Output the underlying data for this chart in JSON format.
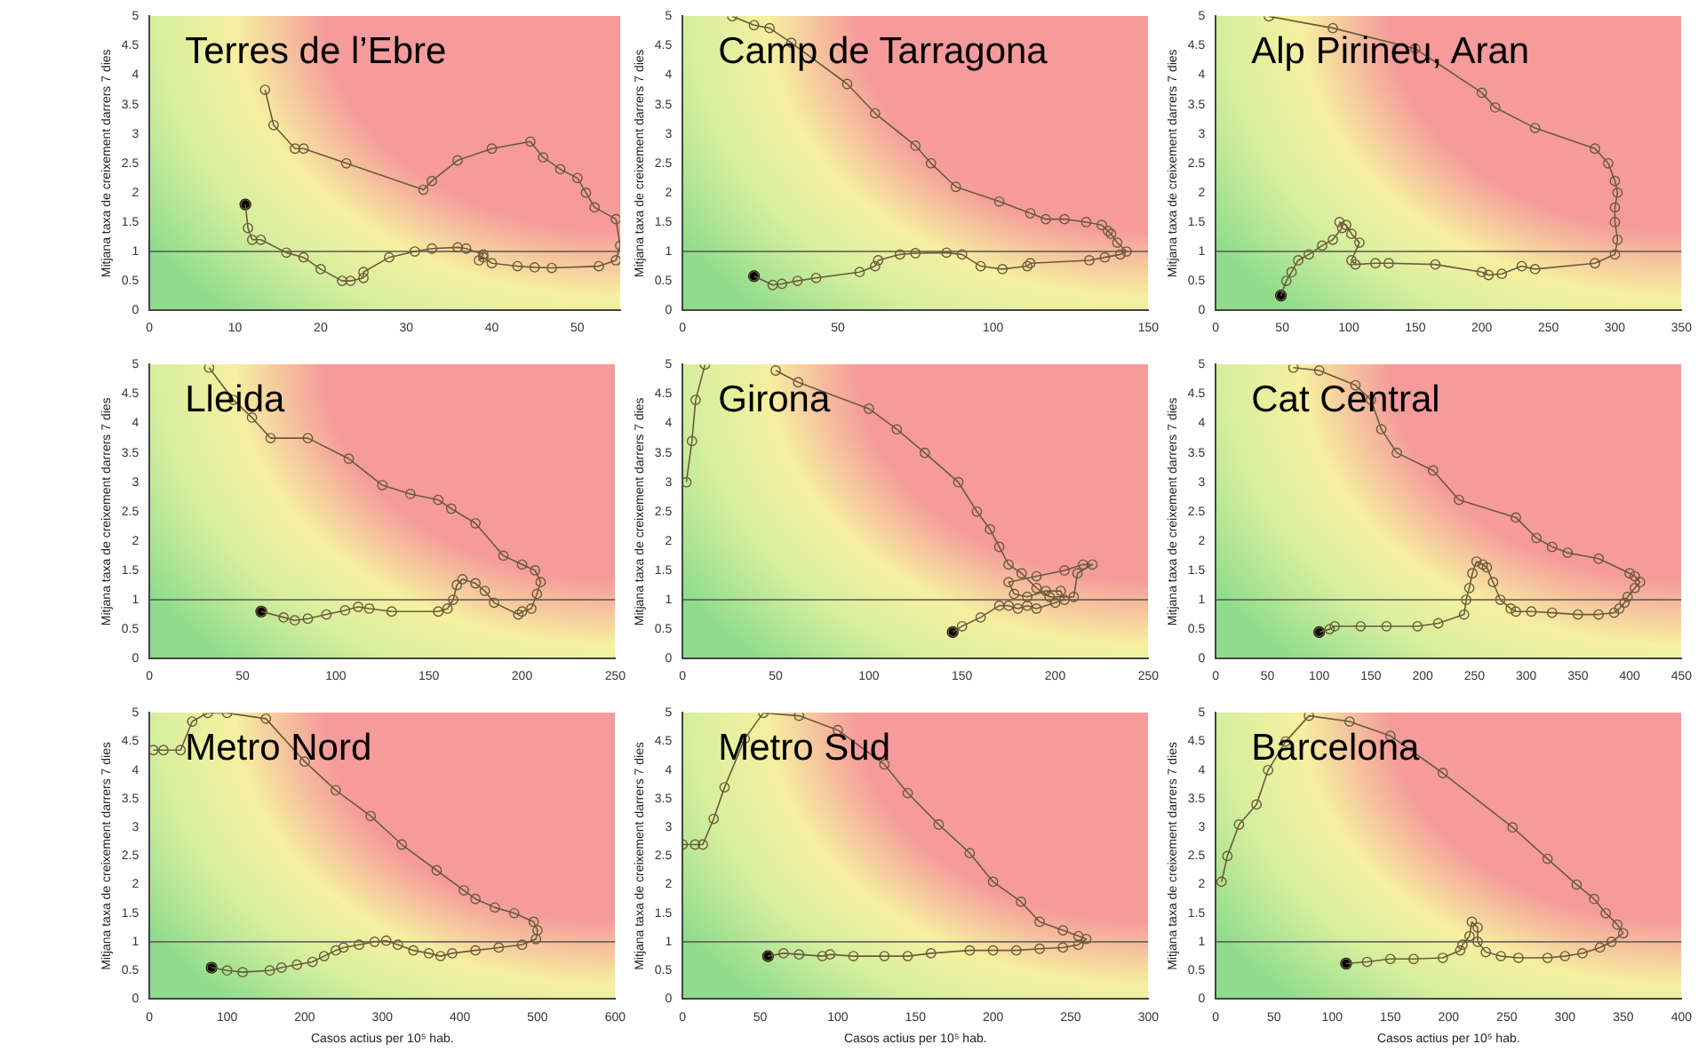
{
  "chart_data": [
    {
      "type": "line",
      "title": "Terres de l’Ebre",
      "ylabel": "Mitjana taxa de creixement darrers 7 dies",
      "xlim": [
        0,
        55
      ],
      "xticks": [
        0,
        10,
        20,
        30,
        40,
        50
      ],
      "ylim": [
        0,
        5
      ],
      "yticks": [
        0,
        0.5,
        1,
        1.5,
        2,
        2.5,
        3,
        3.5,
        4,
        4.5,
        5
      ],
      "grid": false,
      "legend": false,
      "marker": "circle",
      "ref_lines": [
        {
          "axis": "y",
          "value": 1,
          "color": "#555555"
        }
      ],
      "series": [
        {
          "type": "line",
          "color": "#6b5a3a",
          "x": [
            13.5,
            14.5,
            17,
            18,
            23,
            32,
            33,
            36,
            40,
            44.5,
            46,
            48,
            50,
            51,
            52,
            54.5,
            55,
            54.5,
            52.5,
            47,
            45,
            43,
            40,
            39,
            38.5,
            39,
            37,
            36,
            33,
            31,
            28,
            25,
            25,
            23.5,
            22.5,
            20,
            18,
            16,
            13,
            12,
            11.5,
            11.2
          ],
          "values": [
            3.75,
            3.15,
            2.75,
            2.75,
            2.5,
            2.05,
            2.2,
            2.55,
            2.75,
            2.87,
            2.6,
            2.4,
            2.25,
            2,
            1.75,
            1.55,
            1.1,
            0.85,
            0.75,
            0.72,
            0.73,
            0.75,
            0.8,
            0.9,
            0.85,
            0.95,
            1.05,
            1.07,
            1.05,
            1,
            0.9,
            0.65,
            0.55,
            0.5,
            0.5,
            0.7,
            0.9,
            0.98,
            1.2,
            1.2,
            1.4,
            1.8
          ]
        },
        {
          "type": "scatter",
          "color": "#000000",
          "x": [
            11.2
          ],
          "values": [
            1.8
          ]
        }
      ]
    },
    {
      "type": "line",
      "title": "Camp de Tarragona",
      "ylabel": "Mitjana taxa de creixement darrers 7 dies",
      "xlim": [
        0,
        150
      ],
      "xticks": [
        0,
        50,
        100,
        150
      ],
      "ylim": [
        0,
        5
      ],
      "yticks": [
        0,
        0.5,
        1,
        1.5,
        2,
        2.5,
        3,
        3.5,
        4,
        4.5,
        5
      ],
      "grid": false,
      "legend": false,
      "marker": "circle",
      "ref_lines": [
        {
          "axis": "y",
          "value": 1,
          "color": "#555555"
        }
      ],
      "series": [
        {
          "type": "line",
          "color": "#6b5a3a",
          "x": [
            16,
            23,
            28,
            35,
            53,
            62,
            75,
            80,
            88,
            102,
            112,
            117,
            123,
            130,
            135,
            137,
            138,
            140,
            143,
            141,
            136,
            131,
            112,
            111,
            103,
            96,
            90,
            85,
            75,
            70,
            63,
            62,
            57,
            43,
            37,
            32,
            29,
            23
          ],
          "values": [
            5,
            4.85,
            4.8,
            4.55,
            3.85,
            3.35,
            2.8,
            2.5,
            2.1,
            1.85,
            1.65,
            1.55,
            1.55,
            1.5,
            1.45,
            1.35,
            1.3,
            1.15,
            1,
            0.95,
            0.9,
            0.85,
            0.8,
            0.75,
            0.7,
            0.75,
            0.95,
            0.98,
            0.97,
            0.95,
            0.85,
            0.75,
            0.65,
            0.55,
            0.5,
            0.45,
            0.43,
            0.58
          ]
        },
        {
          "type": "scatter",
          "color": "#000000",
          "x": [
            23
          ],
          "values": [
            0.58
          ]
        }
      ]
    },
    {
      "type": "line",
      "title": "Alp Pirineu, Aran",
      "ylabel": "Mitjana taxa de creixement darrers 7 dies",
      "xlim": [
        0,
        350
      ],
      "xticks": [
        0,
        50,
        100,
        150,
        200,
        250,
        300,
        350
      ],
      "ylim": [
        0,
        5
      ],
      "yticks": [
        0,
        0.5,
        1,
        1.5,
        2,
        2.5,
        3,
        3.5,
        4,
        4.5,
        5
      ],
      "grid": false,
      "legend": false,
      "marker": "circle",
      "ref_lines": [
        {
          "axis": "y",
          "value": 1,
          "color": "#555555"
        }
      ],
      "series": [
        {
          "type": "line",
          "color": "#6b5a3a",
          "x": [
            40,
            88,
            150,
            200,
            210,
            240,
            285,
            295,
            300,
            302,
            300,
            300,
            302,
            300,
            285,
            240,
            230,
            215,
            205,
            200,
            165,
            130,
            120,
            105,
            102,
            108,
            102,
            98,
            93,
            95,
            88,
            80,
            70,
            62,
            57,
            53,
            49
          ],
          "values": [
            5,
            4.8,
            4.45,
            3.7,
            3.45,
            3.1,
            2.75,
            2.5,
            2.2,
            2,
            1.75,
            1.5,
            1.2,
            0.95,
            0.8,
            0.7,
            0.75,
            0.62,
            0.6,
            0.65,
            0.78,
            0.8,
            0.8,
            0.78,
            0.85,
            1.15,
            1.3,
            1.45,
            1.5,
            1.4,
            1.2,
            1.1,
            0.95,
            0.85,
            0.65,
            0.5,
            0.25
          ]
        },
        {
          "type": "scatter",
          "color": "#000000",
          "x": [
            49
          ],
          "values": [
            0.25
          ]
        }
      ]
    },
    {
      "type": "line",
      "title": "Lleida",
      "ylabel": "Mitjana taxa de creixement darrers 7 dies",
      "xlim": [
        0,
        250
      ],
      "xticks": [
        0,
        50,
        100,
        150,
        200,
        250
      ],
      "ylim": [
        0,
        5
      ],
      "yticks": [
        0,
        0.5,
        1,
        1.5,
        2,
        2.5,
        3,
        3.5,
        4,
        4.5,
        5
      ],
      "grid": false,
      "legend": false,
      "marker": "circle",
      "ref_lines": [
        {
          "axis": "y",
          "value": 1,
          "color": "#555555"
        }
      ],
      "series": [
        {
          "type": "line",
          "color": "#6b5a3a",
          "x": [
            32,
            45,
            55,
            65,
            85,
            107,
            125,
            140,
            155,
            162,
            175,
            190,
            200,
            207,
            210,
            208,
            205,
            200,
            198,
            185,
            180,
            175,
            168,
            165,
            163,
            160,
            155,
            130,
            118,
            112,
            105,
            95,
            85,
            78,
            72,
            60
          ],
          "values": [
            4.95,
            4.4,
            4.1,
            3.75,
            3.75,
            3.4,
            2.95,
            2.8,
            2.7,
            2.55,
            2.3,
            1.75,
            1.6,
            1.5,
            1.3,
            1.1,
            0.85,
            0.8,
            0.75,
            0.95,
            1.15,
            1.28,
            1.35,
            1.25,
            1,
            0.85,
            0.8,
            0.8,
            0.85,
            0.88,
            0.82,
            0.75,
            0.68,
            0.65,
            0.7,
            0.8
          ]
        },
        {
          "type": "scatter",
          "color": "#000000",
          "x": [
            60
          ],
          "values": [
            0.8
          ]
        }
      ]
    },
    {
      "type": "line",
      "title": "Girona",
      "ylabel": "Mitjana taxa de creixement darrers 7 dies",
      "xlim": [
        0,
        250
      ],
      "xticks": [
        0,
        50,
        100,
        150,
        200,
        250
      ],
      "ylim": [
        0,
        5
      ],
      "yticks": [
        0,
        0.5,
        1,
        1.5,
        2,
        2.5,
        3,
        3.5,
        4,
        4.5,
        5
      ],
      "grid": false,
      "legend": false,
      "marker": "circle",
      "ref_lines": [
        {
          "axis": "y",
          "value": 1,
          "color": "#555555"
        }
      ],
      "series": [
        {
          "type": "line",
          "color": "#6b5a3a",
          "x": [
            2,
            5,
            7,
            12,
            null,
            50,
            62,
            100,
            115,
            130,
            148,
            158,
            165,
            170,
            175,
            182,
            190,
            197,
            210,
            212,
            220,
            215,
            205,
            190,
            175,
            178,
            185,
            195,
            203,
            205,
            200,
            190,
            185,
            180,
            175,
            170,
            160,
            150,
            145
          ],
          "values": [
            3,
            3.7,
            4.4,
            5,
            null,
            4.9,
            4.7,
            4.25,
            3.9,
            3.5,
            3,
            2.5,
            2.2,
            1.9,
            1.6,
            1.45,
            1.2,
            1.05,
            1.05,
            1.45,
            1.6,
            1.6,
            1.5,
            1.4,
            1.3,
            1.1,
            1.05,
            1.15,
            1.15,
            1,
            0.95,
            0.85,
            0.9,
            0.85,
            0.9,
            0.9,
            0.7,
            0.55,
            0.45
          ]
        },
        {
          "type": "scatter",
          "color": "#000000",
          "x": [
            145
          ],
          "values": [
            0.45
          ]
        }
      ]
    },
    {
      "type": "line",
      "title": "Cat Central",
      "ylabel": "Mitjana taxa de creixement darrers 7 dies",
      "xlim": [
        0,
        450
      ],
      "xticks": [
        0,
        50,
        100,
        150,
        200,
        250,
        300,
        350,
        400,
        450
      ],
      "ylim": [
        0,
        5
      ],
      "yticks": [
        0,
        0.5,
        1,
        1.5,
        2,
        2.5,
        3,
        3.5,
        4,
        4.5,
        5
      ],
      "grid": false,
      "legend": false,
      "marker": "circle",
      "ref_lines": [
        {
          "axis": "y",
          "value": 1,
          "color": "#555555"
        }
      ],
      "series": [
        {
          "type": "line",
          "color": "#6b5a3a",
          "x": [
            75,
            100,
            135,
            150,
            160,
            175,
            210,
            235,
            290,
            310,
            325,
            340,
            370,
            400,
            405,
            410,
            405,
            398,
            395,
            390,
            385,
            370,
            350,
            325,
            305,
            290,
            285,
            275,
            268,
            262,
            258,
            252,
            248,
            245,
            242,
            240,
            215,
            195,
            165,
            140,
            115,
            110,
            100
          ],
          "values": [
            4.95,
            4.9,
            4.65,
            4.4,
            3.9,
            3.5,
            3.2,
            2.7,
            2.4,
            2.05,
            1.9,
            1.8,
            1.7,
            1.45,
            1.4,
            1.3,
            1.2,
            1.05,
            0.95,
            0.85,
            0.78,
            0.75,
            0.75,
            0.78,
            0.8,
            0.8,
            0.85,
            1,
            1.3,
            1.55,
            1.6,
            1.65,
            1.45,
            1.2,
            1,
            0.75,
            0.6,
            0.55,
            0.55,
            0.55,
            0.55,
            0.5,
            0.45
          ]
        },
        {
          "type": "scatter",
          "color": "#000000",
          "x": [
            100
          ],
          "values": [
            0.45
          ]
        }
      ]
    },
    {
      "type": "line",
      "title": "Metro Nord",
      "xlabel": "Casos actius per 10⁵ hab.",
      "ylabel": "Mitjana taxa de creixement darrers 7 dies",
      "xlim": [
        0,
        600
      ],
      "xticks": [
        0,
        100,
        200,
        300,
        400,
        500,
        600
      ],
      "ylim": [
        0,
        5
      ],
      "yticks": [
        0,
        0.5,
        1,
        1.5,
        2,
        2.5,
        3,
        3.5,
        4,
        4.5,
        5
      ],
      "grid": false,
      "legend": false,
      "marker": "circle",
      "ref_lines": [
        {
          "axis": "y",
          "value": 1,
          "color": "#555555"
        }
      ],
      "series": [
        {
          "type": "line",
          "color": "#6b5a3a",
          "x": [
            5,
            18,
            40,
            55,
            75,
            100,
            150,
            200,
            240,
            285,
            325,
            370,
            405,
            420,
            445,
            470,
            495,
            500,
            498,
            480,
            450,
            420,
            390,
            375,
            360,
            340,
            320,
            305,
            290,
            270,
            250,
            240,
            225,
            210,
            190,
            170,
            155,
            120,
            100,
            80
          ],
          "values": [
            4.35,
            4.35,
            4.35,
            4.85,
            5,
            5,
            4.9,
            4.15,
            3.65,
            3.2,
            2.7,
            2.25,
            1.9,
            1.75,
            1.6,
            1.5,
            1.35,
            1.2,
            1.05,
            0.95,
            0.9,
            0.85,
            0.8,
            0.75,
            0.8,
            0.85,
            0.95,
            1.02,
            1,
            0.95,
            0.9,
            0.85,
            0.75,
            0.65,
            0.6,
            0.55,
            0.5,
            0.47,
            0.5,
            0.55
          ]
        },
        {
          "type": "scatter",
          "color": "#000000",
          "x": [
            80
          ],
          "values": [
            0.55
          ]
        }
      ]
    },
    {
      "type": "line",
      "title": "Metro Sud",
      "xlabel": "Casos actius per 10⁵ hab.",
      "ylabel": "Mitjana taxa de creixement darrers 7 dies",
      "xlim": [
        0,
        300
      ],
      "xticks": [
        0,
        50,
        100,
        150,
        200,
        250,
        300
      ],
      "ylim": [
        0,
        5
      ],
      "yticks": [
        0,
        0.5,
        1,
        1.5,
        2,
        2.5,
        3,
        3.5,
        4,
        4.5,
        5
      ],
      "grid": false,
      "legend": false,
      "marker": "circle",
      "ref_lines": [
        {
          "axis": "y",
          "value": 1,
          "color": "#555555"
        }
      ],
      "series": [
        {
          "type": "line",
          "color": "#6b5a3a",
          "x": [
            0,
            8,
            13,
            20,
            27,
            40,
            52,
            75,
            100,
            130,
            145,
            165,
            185,
            200,
            218,
            230,
            245,
            255,
            260,
            255,
            245,
            230,
            215,
            200,
            185,
            160,
            145,
            130,
            110,
            95,
            90,
            75,
            65,
            55
          ],
          "values": [
            2.7,
            2.7,
            2.7,
            3.15,
            3.7,
            4.55,
            5,
            4.95,
            4.7,
            4.1,
            3.6,
            3.05,
            2.55,
            2.05,
            1.7,
            1.35,
            1.2,
            1.1,
            1.05,
            0.95,
            0.9,
            0.88,
            0.85,
            0.85,
            0.85,
            0.8,
            0.75,
            0.75,
            0.75,
            0.78,
            0.75,
            0.78,
            0.8,
            0.75
          ]
        },
        {
          "type": "scatter",
          "color": "#000000",
          "x": [
            55
          ],
          "values": [
            0.75
          ]
        }
      ]
    },
    {
      "type": "line",
      "title": "Barcelona",
      "xlabel": "Casos actius per 10⁵ hab.",
      "ylabel": "Mitjana taxa de creixement darrers 7 dies",
      "xlim": [
        0,
        400
      ],
      "xticks": [
        0,
        50,
        100,
        150,
        200,
        250,
        300,
        350,
        400
      ],
      "ylim": [
        0,
        5
      ],
      "yticks": [
        0,
        0.5,
        1,
        1.5,
        2,
        2.5,
        3,
        3.5,
        4,
        4.5,
        5
      ],
      "grid": false,
      "legend": false,
      "marker": "circle",
      "ref_lines": [
        {
          "axis": "y",
          "value": 1,
          "color": "#555555"
        }
      ],
      "series": [
        {
          "type": "line",
          "color": "#6b5a3a",
          "x": [
            5,
            10,
            20,
            35,
            45,
            60,
            80,
            115,
            150,
            195,
            255,
            285,
            310,
            325,
            335,
            345,
            350,
            340,
            330,
            315,
            300,
            285,
            260,
            245,
            232,
            225,
            225,
            220,
            218,
            212,
            210,
            195,
            170,
            150,
            130,
            112
          ],
          "values": [
            2.05,
            2.5,
            3.05,
            3.4,
            4,
            4.5,
            4.95,
            4.85,
            4.6,
            3.95,
            3,
            2.45,
            2,
            1.75,
            1.5,
            1.3,
            1.15,
            1,
            0.9,
            0.8,
            0.75,
            0.72,
            0.72,
            0.75,
            0.82,
            1,
            1.25,
            1.35,
            1.1,
            0.95,
            0.85,
            0.72,
            0.7,
            0.7,
            0.65,
            0.62
          ]
        },
        {
          "type": "scatter",
          "color": "#000000",
          "x": [
            112
          ],
          "values": [
            0.62
          ]
        }
      ]
    }
  ]
}
